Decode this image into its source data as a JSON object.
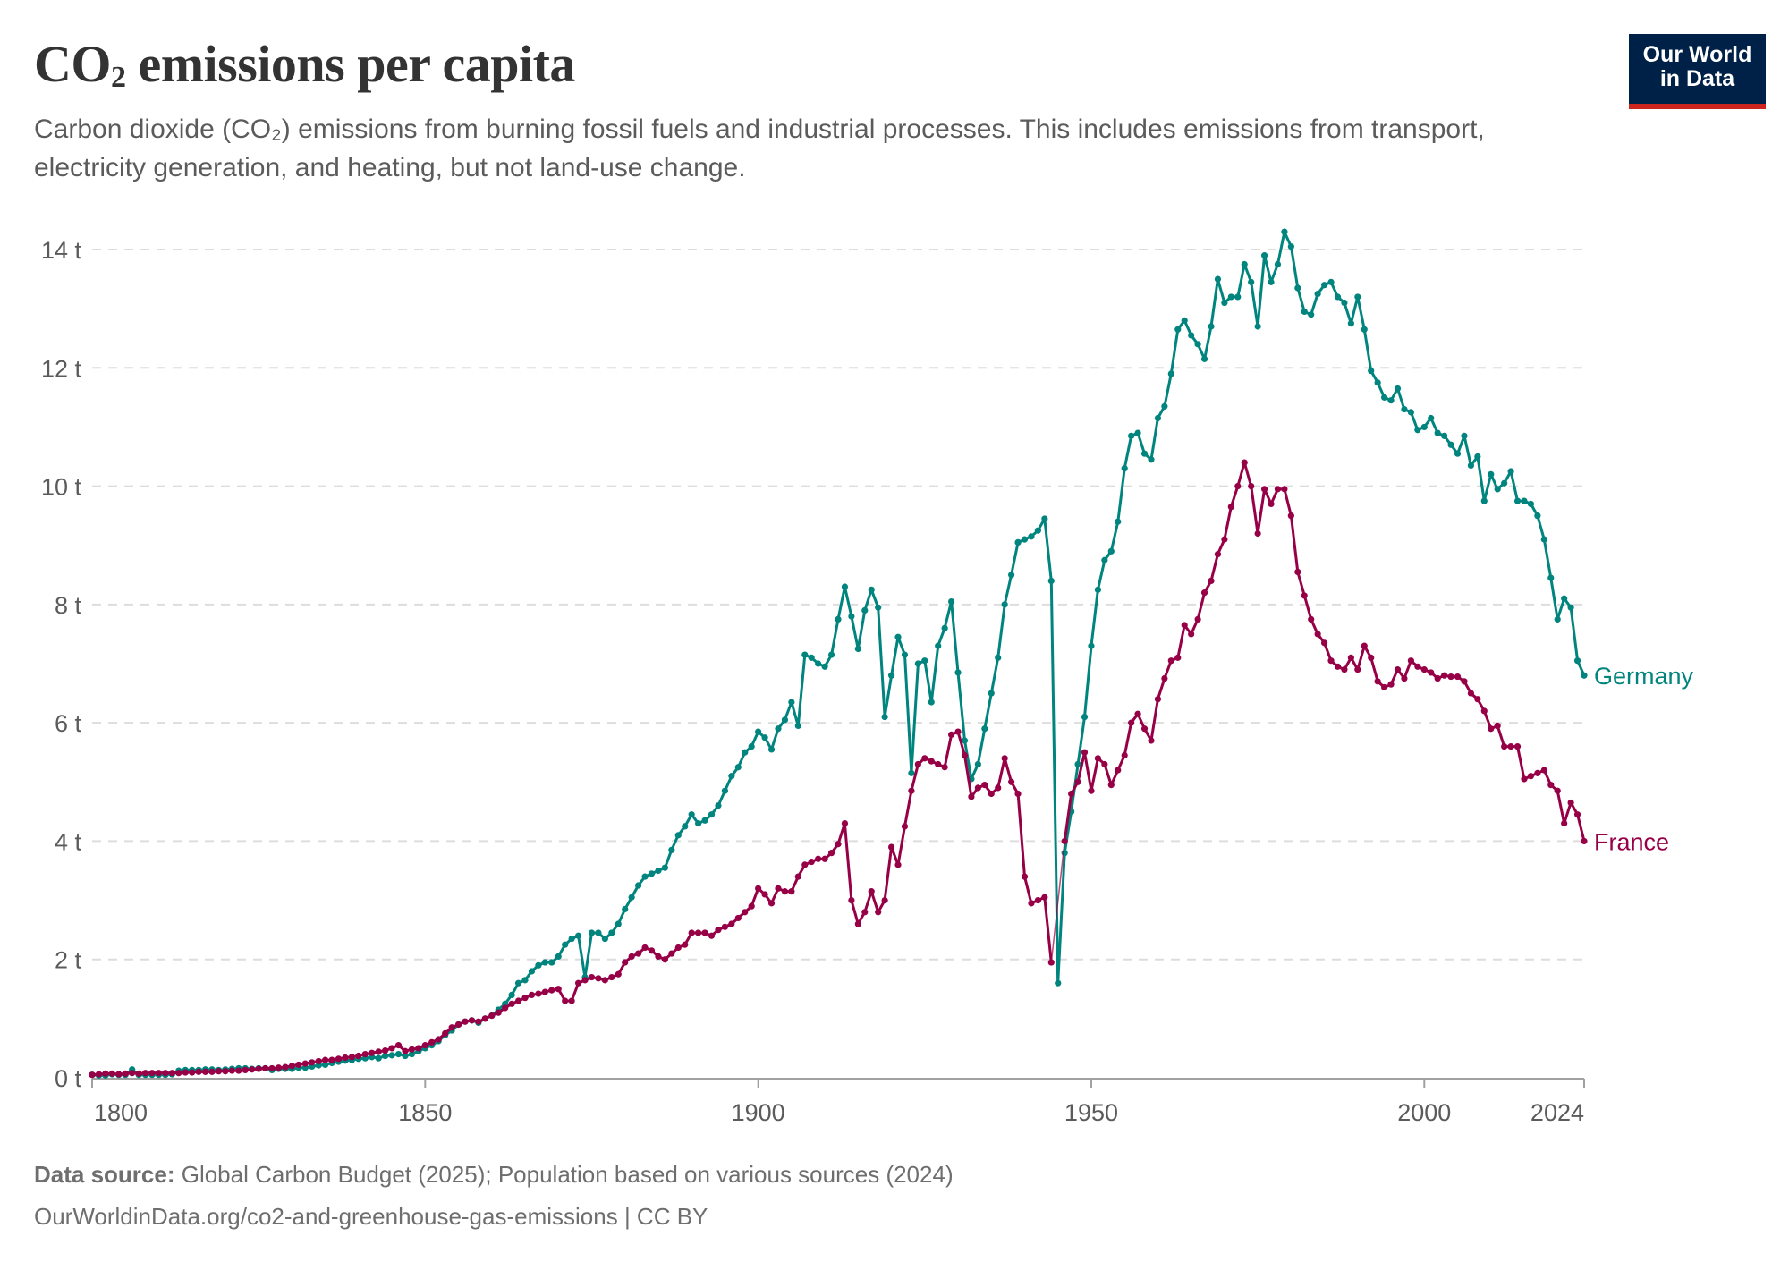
{
  "header": {
    "title_prefix": "CO",
    "title_sub": "2",
    "title_suffix": " emissions per capita",
    "subtitle": "Carbon dioxide (CO₂) emissions from burning fossil fuels and industrial processes. This includes emissions from transport, electricity generation, and heating, but not land-use change."
  },
  "logo": {
    "line1": "Our World",
    "line2": "in Data",
    "bg_color": "#002147",
    "accent_color": "#ce261e"
  },
  "footer": {
    "source_label": "Data source:",
    "source_text": " Global Carbon Budget (2025); Population based on various sources (2024)",
    "url": "OurWorldinData.org/co2-and-greenhouse-gas-emissions",
    "license": " | CC BY"
  },
  "chart_data": {
    "type": "line",
    "title": "CO₂ emissions per capita",
    "xlabel": "",
    "ylabel": "",
    "xlim": [
      1800,
      2024
    ],
    "ylim": [
      0,
      14
    ],
    "x_ticks": [
      1800,
      1850,
      1900,
      1950,
      2000,
      2024
    ],
    "x_tick_labels": [
      "1800",
      "1850",
      "1900",
      "1950",
      "2000",
      "2024"
    ],
    "y_ticks": [
      0,
      2,
      4,
      6,
      8,
      10,
      12,
      14
    ],
    "y_tick_labels": [
      "0 t",
      "2 t",
      "4 t",
      "6 t",
      "8 t",
      "10 t",
      "12 t",
      "14 t"
    ],
    "grid": "horizontal dashed",
    "legend": "inline labels at line ends (right)",
    "x_start": 1800,
    "series": [
      {
        "name": "Germany",
        "color": "#00847e",
        "values": [
          0.05,
          0.04,
          0.04,
          0.06,
          0.05,
          0.05,
          0.14,
          0.05,
          0.05,
          0.05,
          0.05,
          0.05,
          0.06,
          0.12,
          0.13,
          0.13,
          0.13,
          0.14,
          0.14,
          0.13,
          0.14,
          0.15,
          0.16,
          0.16,
          0.15,
          0.16,
          0.16,
          0.13,
          0.15,
          0.15,
          0.15,
          0.17,
          0.17,
          0.19,
          0.21,
          0.22,
          0.25,
          0.27,
          0.29,
          0.3,
          0.32,
          0.33,
          0.35,
          0.33,
          0.37,
          0.38,
          0.4,
          0.37,
          0.4,
          0.45,
          0.5,
          0.55,
          0.62,
          0.72,
          0.8,
          0.9,
          0.95,
          0.97,
          0.93,
          1.0,
          1.05,
          1.15,
          1.25,
          1.4,
          1.6,
          1.65,
          1.8,
          1.9,
          1.95,
          1.95,
          2.05,
          2.25,
          2.35,
          2.4,
          1.7,
          2.45,
          2.45,
          2.35,
          2.45,
          2.6,
          2.85,
          3.05,
          3.25,
          3.4,
          3.45,
          3.5,
          3.55,
          3.85,
          4.1,
          4.25,
          4.45,
          4.3,
          4.35,
          4.45,
          4.6,
          4.85,
          5.1,
          5.25,
          5.5,
          5.6,
          5.85,
          5.75,
          5.55,
          5.9,
          6.05,
          6.35,
          5.95,
          7.15,
          7.1,
          7.0,
          6.95,
          7.15,
          7.75,
          8.3,
          7.8,
          7.25,
          7.9,
          8.25,
          7.95,
          6.1,
          6.8,
          7.45,
          7.15,
          5.15,
          7.0,
          7.05,
          6.35,
          7.3,
          7.6,
          8.05,
          6.85,
          5.7,
          5.05,
          5.3,
          5.9,
          6.5,
          7.1,
          8.0,
          8.5,
          9.05,
          9.1,
          9.15,
          9.25,
          9.45,
          8.4,
          1.6,
          3.8,
          4.5,
          5.3,
          6.1,
          7.3,
          8.25,
          8.75,
          8.9,
          9.4,
          10.3,
          10.85,
          10.9,
          10.55,
          10.45,
          11.15,
          11.35,
          11.9,
          12.65,
          12.8,
          12.55,
          12.4,
          12.15,
          12.7,
          13.5,
          13.1,
          13.2,
          13.2,
          13.75,
          13.45,
          12.7,
          13.9,
          13.45,
          13.75,
          14.3,
          14.05,
          13.35,
          12.95,
          12.9,
          13.25,
          13.4,
          13.45,
          13.2,
          13.1,
          12.75,
          13.2,
          12.65,
          11.95,
          11.75,
          11.5,
          11.45,
          11.65,
          11.3,
          11.25,
          10.95,
          11.0,
          11.15,
          10.9,
          10.85,
          10.7,
          10.55,
          10.85,
          10.35,
          10.5,
          9.75,
          10.2,
          9.95,
          10.05,
          10.25,
          9.75,
          9.75,
          9.7,
          9.5,
          9.1,
          8.45,
          7.75,
          8.1,
          7.95,
          7.05,
          6.8
        ]
      },
      {
        "name": "France",
        "color": "#970046",
        "values": [
          0.05,
          0.06,
          0.07,
          0.07,
          0.06,
          0.07,
          0.08,
          0.07,
          0.08,
          0.08,
          0.08,
          0.08,
          0.08,
          0.08,
          0.09,
          0.09,
          0.1,
          0.1,
          0.1,
          0.11,
          0.11,
          0.12,
          0.12,
          0.13,
          0.14,
          0.15,
          0.16,
          0.16,
          0.17,
          0.18,
          0.2,
          0.22,
          0.24,
          0.26,
          0.28,
          0.3,
          0.3,
          0.32,
          0.34,
          0.35,
          0.37,
          0.4,
          0.42,
          0.44,
          0.46,
          0.5,
          0.55,
          0.45,
          0.48,
          0.5,
          0.55,
          0.6,
          0.65,
          0.75,
          0.85,
          0.9,
          0.95,
          0.97,
          0.95,
          1.0,
          1.05,
          1.1,
          1.18,
          1.25,
          1.3,
          1.35,
          1.4,
          1.42,
          1.45,
          1.48,
          1.5,
          1.3,
          1.3,
          1.6,
          1.65,
          1.7,
          1.68,
          1.65,
          1.7,
          1.75,
          1.95,
          2.05,
          2.1,
          2.2,
          2.15,
          2.05,
          2.0,
          2.1,
          2.2,
          2.25,
          2.45,
          2.45,
          2.45,
          2.4,
          2.5,
          2.55,
          2.6,
          2.7,
          2.8,
          2.9,
          3.2,
          3.1,
          2.95,
          3.2,
          3.15,
          3.15,
          3.4,
          3.6,
          3.65,
          3.7,
          3.7,
          3.8,
          3.95,
          4.3,
          3.0,
          2.6,
          2.8,
          3.15,
          2.8,
          3.0,
          3.9,
          3.6,
          4.25,
          4.85,
          5.3,
          5.4,
          5.35,
          5.3,
          5.25,
          5.8,
          5.85,
          5.45,
          4.75,
          4.9,
          4.95,
          4.8,
          4.9,
          5.4,
          5.0,
          4.8,
          3.4,
          2.95,
          3.0,
          3.05,
          1.95,
          null,
          4.0,
          4.8,
          5.0,
          5.5,
          4.85,
          5.4,
          5.3,
          4.95,
          5.2,
          5.45,
          6.0,
          6.15,
          5.9,
          5.7,
          6.4,
          6.75,
          7.05,
          7.1,
          7.65,
          7.5,
          7.75,
          8.2,
          8.4,
          8.85,
          9.1,
          9.65,
          10.0,
          10.4,
          10.0,
          9.2,
          9.95,
          9.7,
          9.95,
          9.95,
          9.5,
          8.55,
          8.15,
          7.75,
          7.5,
          7.35,
          7.05,
          6.95,
          6.9,
          7.1,
          6.9,
          7.3,
          7.1,
          6.7,
          6.6,
          6.65,
          6.9,
          6.75,
          7.05,
          6.95,
          6.9,
          6.85,
          6.75,
          6.8,
          6.78,
          6.78,
          6.7,
          6.5,
          6.4,
          6.2,
          5.9,
          5.95,
          5.6,
          5.6,
          5.6,
          5.05,
          5.1,
          5.15,
          5.2,
          4.95,
          4.85,
          4.3,
          4.65,
          4.45,
          4.0
        ]
      }
    ]
  }
}
